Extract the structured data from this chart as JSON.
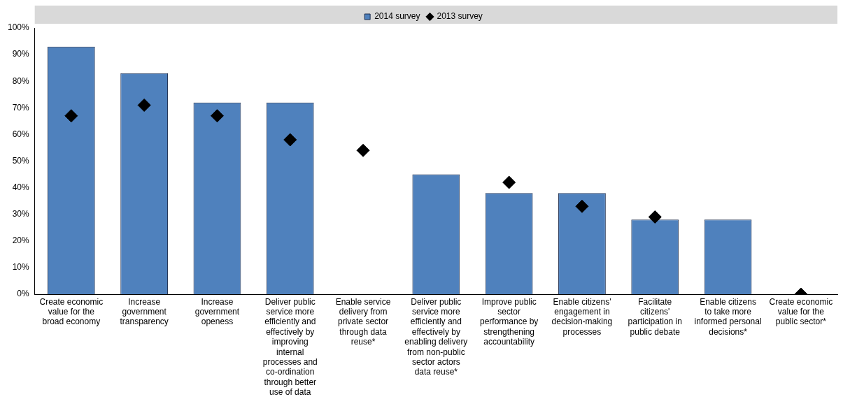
{
  "chart_data": {
    "type": "bar",
    "categories": [
      "Create economic value for the broad economy",
      "Increase government transparency",
      "Increase government openess",
      "Deliver public service more efficiently and effectively by improving internal processes and co-ordination through better use of data",
      "Enable service delivery from private sector through data reuse*",
      "Deliver public service more efficiently and effectively by enabling delivery from non-public sector actors data reuse*",
      "Improve public sector performance by strengthening accountability",
      "Enable citizens' engagement in decision-making processes",
      "Facilitate citizens' participation in public debate",
      "Enable citizens to take more informed personal decisions*",
      "Create economic value for the public sector*"
    ],
    "series": [
      {
        "name": "2014 survey",
        "color": "#4f81bd",
        "values": [
          93,
          83,
          72,
          72,
          null,
          45,
          38,
          38,
          28,
          28,
          null
        ]
      },
      {
        "name": "2013 survey",
        "type": "scatter",
        "marker": "diamond",
        "color": "#000000",
        "values": [
          67,
          71,
          67,
          58,
          54,
          null,
          42,
          33,
          29,
          null,
          0
        ]
      }
    ],
    "ylim": [
      0,
      100
    ],
    "yticks": [
      {
        "value": 0,
        "label": "0%"
      },
      {
        "value": 10,
        "label": "10%"
      },
      {
        "value": 20,
        "label": "20%"
      },
      {
        "value": 30,
        "label": "30%"
      },
      {
        "value": 40,
        "label": "40%"
      },
      {
        "value": 50,
        "label": "50%"
      },
      {
        "value": 60,
        "label": "60%"
      },
      {
        "value": 70,
        "label": "70%"
      },
      {
        "value": 80,
        "label": "80%"
      },
      {
        "value": 90,
        "label": "90%"
      },
      {
        "value": 100,
        "label": "100%"
      }
    ],
    "grid": false,
    "legend": "top"
  }
}
